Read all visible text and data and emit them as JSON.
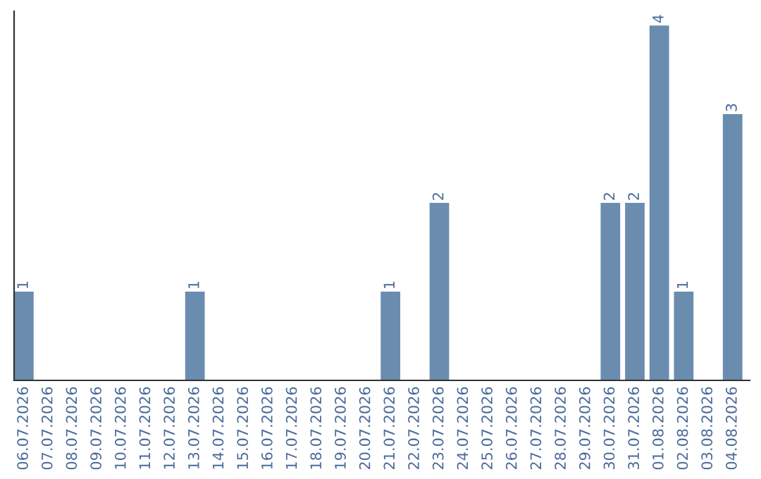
{
  "chart_data": {
    "type": "bar",
    "categories": [
      "06.07.2026",
      "07.07.2026",
      "08.07.2026",
      "09.07.2026",
      "10.07.2026",
      "11.07.2026",
      "12.07.2026",
      "13.07.2026",
      "14.07.2026",
      "15.07.2026",
      "16.07.2026",
      "17.07.2026",
      "18.07.2026",
      "19.07.2026",
      "20.07.2026",
      "21.07.2026",
      "22.07.2026",
      "23.07.2026",
      "24.07.2026",
      "25.07.2026",
      "26.07.2026",
      "27.07.2026",
      "28.07.2026",
      "29.07.2026",
      "30.07.2026",
      "31.07.2026",
      "01.08.2026",
      "02.08.2026",
      "03.08.2026",
      "04.08.2026"
    ],
    "values": [
      1,
      0,
      0,
      0,
      0,
      0,
      0,
      1,
      0,
      0,
      0,
      0,
      0,
      0,
      0,
      1,
      0,
      2,
      0,
      0,
      0,
      0,
      0,
      0,
      2,
      2,
      4,
      1,
      0,
      3
    ],
    "value_labels": [
      "1",
      null,
      null,
      null,
      null,
      null,
      null,
      "1",
      null,
      null,
      null,
      null,
      null,
      null,
      null,
      "1",
      null,
      "2",
      null,
      null,
      null,
      null,
      null,
      null,
      "2",
      "2",
      "4",
      "1",
      null,
      "3"
    ],
    "color": "#6a8caf",
    "grid": false,
    "tick_labels": "x"
  }
}
